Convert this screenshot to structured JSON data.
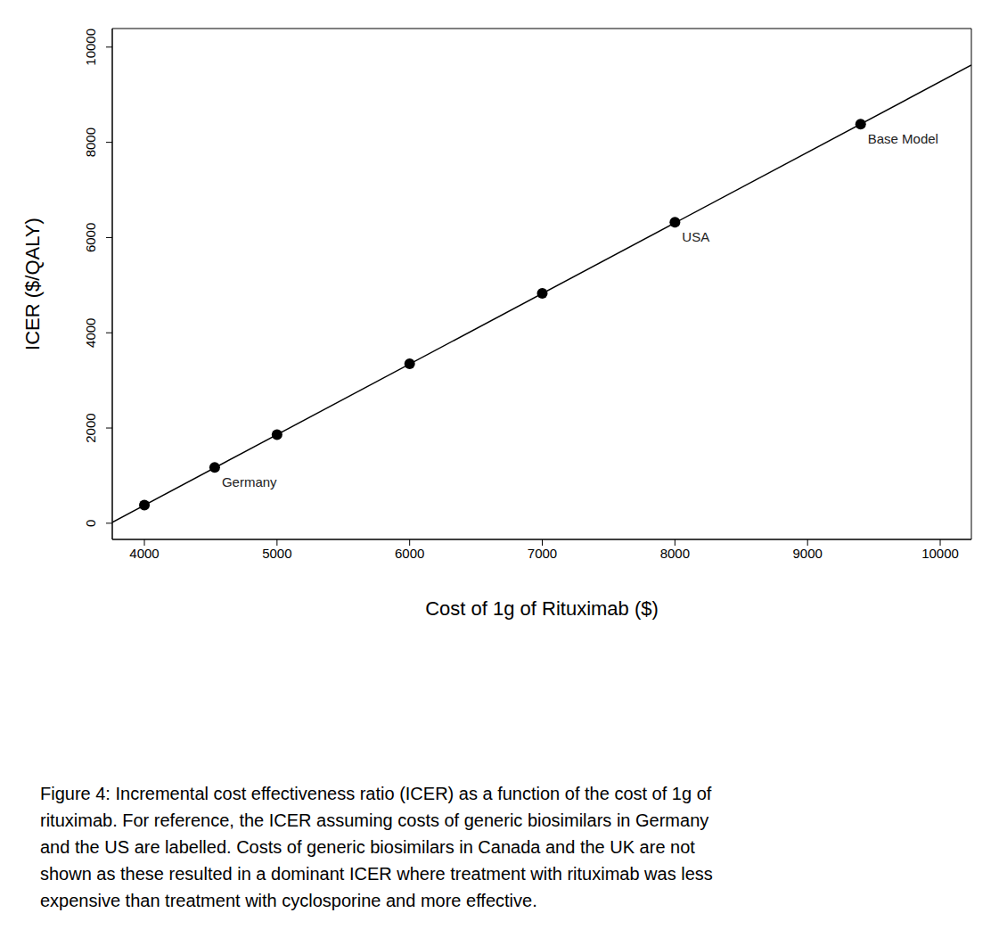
{
  "chart_data": {
    "type": "line",
    "x_label": "Cost of 1g of Rituximab ($)",
    "y_label": "ICER ($/QALY)",
    "caption": "Figure 4: Incremental cost effectiveness ratio (ICER) as a function of the cost of 1g of\nrituximab. For reference, the ICER assuming costs of generic biosimilars in Germany\nand the US are labelled. Costs of generic biosimilars in Canada and the UK are not\nshown as these resulted in a dominant ICER where treatment with rituximab was less\nexpensive than treatment with cyclosporine and more effective.",
    "xlim": [
      3758,
      10235
    ],
    "ylim": [
      -340,
      10390
    ],
    "xticks": [
      4000,
      5000,
      6000,
      7000,
      8000,
      9000,
      10000
    ],
    "yticks": [
      0,
      2000,
      4000,
      6000,
      8000,
      10000
    ],
    "series": [
      {
        "type": "line",
        "color": "#000000",
        "line_style": "solid",
        "x": [
          3758,
          10235
        ],
        "values": [
          20,
          9622
        ]
      },
      {
        "type": "scatter",
        "color": "#000000",
        "marker": "circle",
        "x": [
          4000,
          4530,
          5000,
          6000,
          7000,
          8000,
          9400
        ],
        "values": [
          380,
          1170,
          1860,
          3350,
          4830,
          6320,
          8380
        ],
        "labels": [
          null,
          "Germany",
          null,
          null,
          null,
          "USA",
          "Base Model"
        ]
      }
    ]
  }
}
